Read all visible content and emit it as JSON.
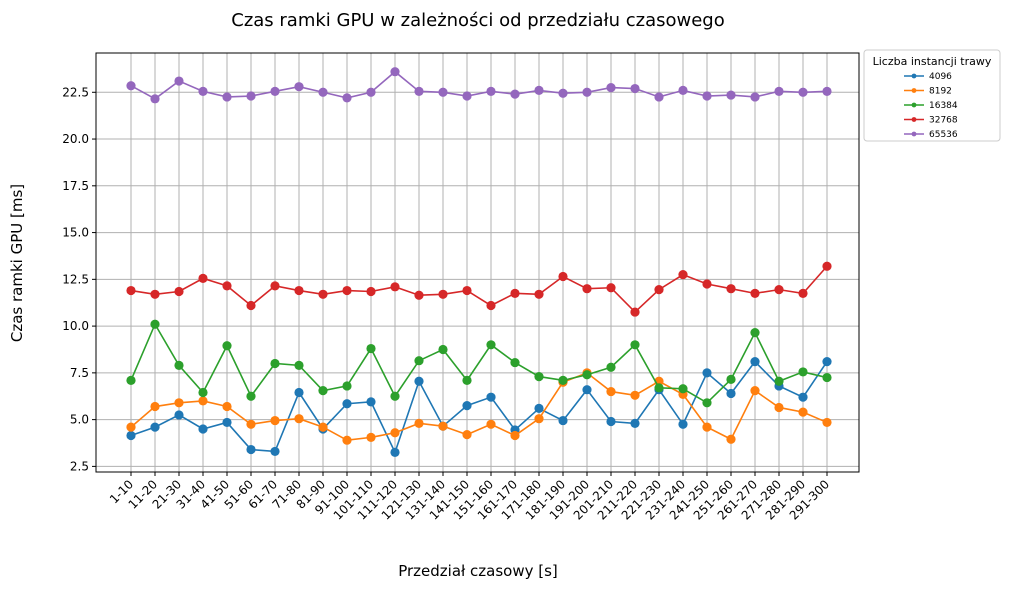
{
  "chart_data": {
    "type": "line",
    "title": "Czas ramki GPU w zależności od przedziału czasowego",
    "xlabel": "Przedział czasowy [s]",
    "ylabel": "Czas ramki GPU [ms]",
    "ylim": [
      2.2,
      24.6
    ],
    "yticks": [
      "2.5",
      "5.0",
      "7.5",
      "10.0",
      "12.5",
      "15.0",
      "17.5",
      "20.0",
      "22.5"
    ],
    "grid": true,
    "legend": {
      "title": "Liczba instancji trawy",
      "placement": "outside-top-right"
    },
    "categories": [
      "1-10",
      "11-20",
      "21-30",
      "31-40",
      "41-50",
      "51-60",
      "61-70",
      "71-80",
      "81-90",
      "91-100",
      "101-110",
      "111-120",
      "121-130",
      "131-140",
      "141-150",
      "151-160",
      "161-170",
      "171-180",
      "181-190",
      "191-200",
      "201-210",
      "211-220",
      "221-230",
      "231-240",
      "241-250",
      "251-260",
      "261-270",
      "271-280",
      "281-290",
      "291-300"
    ],
    "series": [
      {
        "name": "4096",
        "color": "#1f77b4",
        "values": [
          4.15,
          4.6,
          5.25,
          4.5,
          4.85,
          3.4,
          3.3,
          6.45,
          4.5,
          5.85,
          5.95,
          3.25,
          7.05,
          4.65,
          5.75,
          6.2,
          4.45,
          5.6,
          4.95,
          6.6,
          4.9,
          4.8,
          6.6,
          4.75,
          7.5,
          6.4,
          8.1,
          6.8,
          6.2,
          8.1
        ]
      },
      {
        "name": "8192",
        "color": "#ff7f0e",
        "values": [
          4.6,
          5.7,
          5.9,
          6.0,
          5.7,
          4.75,
          4.95,
          5.05,
          4.6,
          3.9,
          4.05,
          4.3,
          4.8,
          4.65,
          4.2,
          4.75,
          4.15,
          5.05,
          7.0,
          7.5,
          6.5,
          6.3,
          7.05,
          6.35,
          4.6,
          3.95,
          6.55,
          5.65,
          5.4,
          4.85
        ]
      },
      {
        "name": "16384",
        "color": "#2ca02c",
        "values": [
          7.1,
          10.1,
          7.9,
          6.45,
          8.95,
          6.25,
          8.0,
          7.9,
          6.55,
          6.8,
          8.8,
          6.25,
          8.15,
          8.75,
          7.1,
          9.0,
          8.05,
          7.3,
          7.1,
          7.4,
          7.8,
          9.0,
          6.7,
          6.65,
          5.9,
          7.15,
          9.65,
          7.05,
          7.55,
          7.25
        ]
      },
      {
        "name": "32768",
        "color": "#d62728",
        "values": [
          11.9,
          11.7,
          11.85,
          12.55,
          12.15,
          11.1,
          12.15,
          11.9,
          11.7,
          11.9,
          11.85,
          12.1,
          11.65,
          11.7,
          11.9,
          11.1,
          11.75,
          11.7,
          12.65,
          12.0,
          12.05,
          10.75,
          11.95,
          12.75,
          12.25,
          12.0,
          11.75,
          11.95,
          11.75,
          13.2
        ]
      },
      {
        "name": "65536",
        "color": "#9467bd",
        "values": [
          22.85,
          22.15,
          23.1,
          22.55,
          22.25,
          22.3,
          22.55,
          22.8,
          22.5,
          22.2,
          22.5,
          23.6,
          22.55,
          22.5,
          22.3,
          22.55,
          22.4,
          22.6,
          22.45,
          22.5,
          22.75,
          22.7,
          22.25,
          22.6,
          22.3,
          22.35,
          22.25,
          22.55,
          22.5,
          22.55
        ]
      }
    ]
  }
}
